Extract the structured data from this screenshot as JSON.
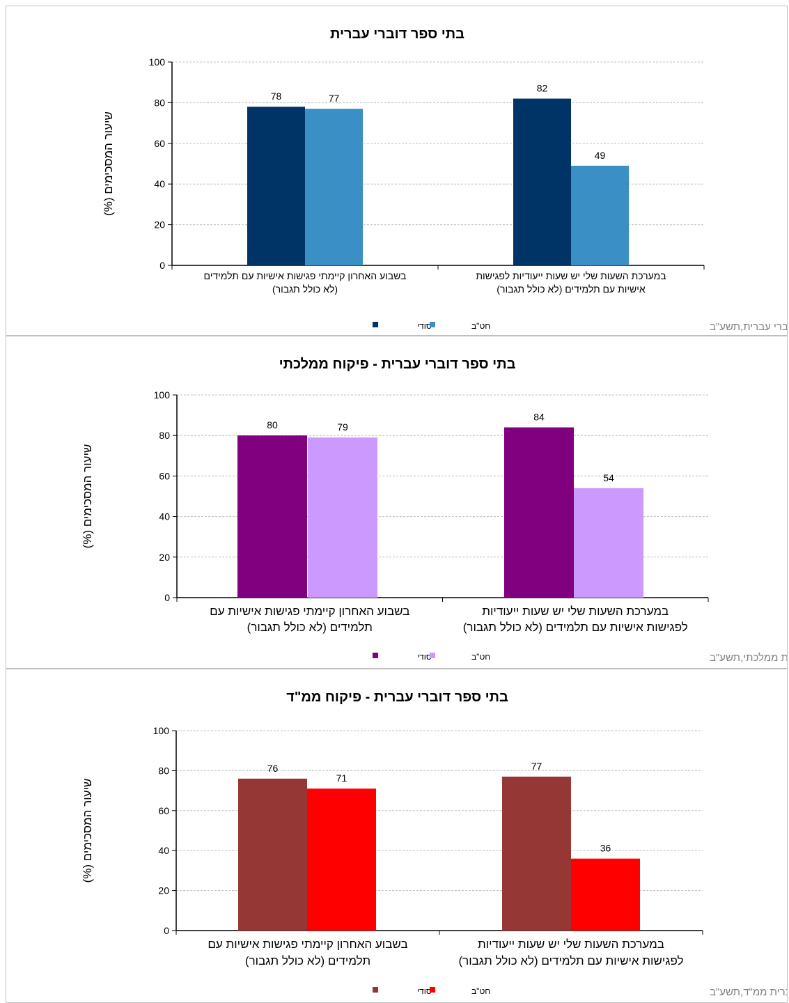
{
  "chart_data": [
    {
      "type": "bar",
      "title": "בתי ספר דוברי עברית",
      "ylabel": "שיעור המסכימים (%)",
      "ylim": [
        0,
        100
      ],
      "yticks": [
        "0",
        "20",
        "40",
        "60",
        "80",
        "100"
      ],
      "categories": [
        [
          "במערכת השעות שלי יש שעות ייעודיות לפגישות",
          "אישיות עם תלמידים (לא כולל תגבור)"
        ],
        [
          "בשבוע האחרון קיימתי פגישות אישיות עם תלמידים",
          "(לא כולל תגבור)"
        ]
      ],
      "series": [
        {
          "name": "יסודי",
          "color": "#003366",
          "values": [
            82,
            78
          ]
        },
        {
          "name": "חט\"ב",
          "color": "#3a8fc4",
          "values": [
            49,
            77
          ]
        }
      ],
      "source": "דוברי עברית,תשע\"ב",
      "grid": true,
      "legend_position": "bottom"
    },
    {
      "type": "bar",
      "title": "בתי ספר דוברי עברית - פיקוח ממלכתי",
      "ylabel": "שיעור המסכימים (%)",
      "ylim": [
        0,
        100
      ],
      "yticks": [
        "0",
        "20",
        "40",
        "60",
        "80",
        "100"
      ],
      "categories": [
        [
          "במערכת השעות שלי יש שעות ייעודיות",
          "לפגישות אישיות עם תלמידים (לא כולל תגבור)"
        ],
        [
          "בשבוע האחרון קיימתי פגישות אישיות עם",
          "תלמידים (לא כולל תגבור)"
        ]
      ],
      "series": [
        {
          "name": "יסודי",
          "color": "#800080",
          "values": [
            84,
            80
          ]
        },
        {
          "name": "חט\"ב",
          "color": "#cc99ff",
          "values": [
            54,
            79
          ]
        }
      ],
      "source": "דוברי עברית ממלכתי,תשע\"ב",
      "grid": true,
      "legend_position": "bottom"
    },
    {
      "type": "bar",
      "title": "בתי ספר דוברי עברית - פיקוח ממ\"ד",
      "ylabel": "שיעור המסכימים (%)",
      "ylim": [
        0,
        100
      ],
      "yticks": [
        "0",
        "20",
        "40",
        "60",
        "80",
        "100"
      ],
      "categories": [
        [
          "במערכת השעות שלי יש שעות ייעודיות",
          "לפגישות אישיות עם תלמידים (לא כולל תגבור)"
        ],
        [
          "בשבוע האחרון קיימתי פגישות אישיות עם",
          "תלמידים (לא כולל תגבור)"
        ]
      ],
      "series": [
        {
          "name": "יסודי",
          "color": "#953735",
          "values": [
            77,
            76
          ]
        },
        {
          "name": "חט\"ב",
          "color": "#ff0000",
          "values": [
            36,
            71
          ]
        }
      ],
      "source": "דוברי עברית ממ\"ד,תשע\"ב",
      "grid": true,
      "legend_position": "bottom"
    }
  ]
}
